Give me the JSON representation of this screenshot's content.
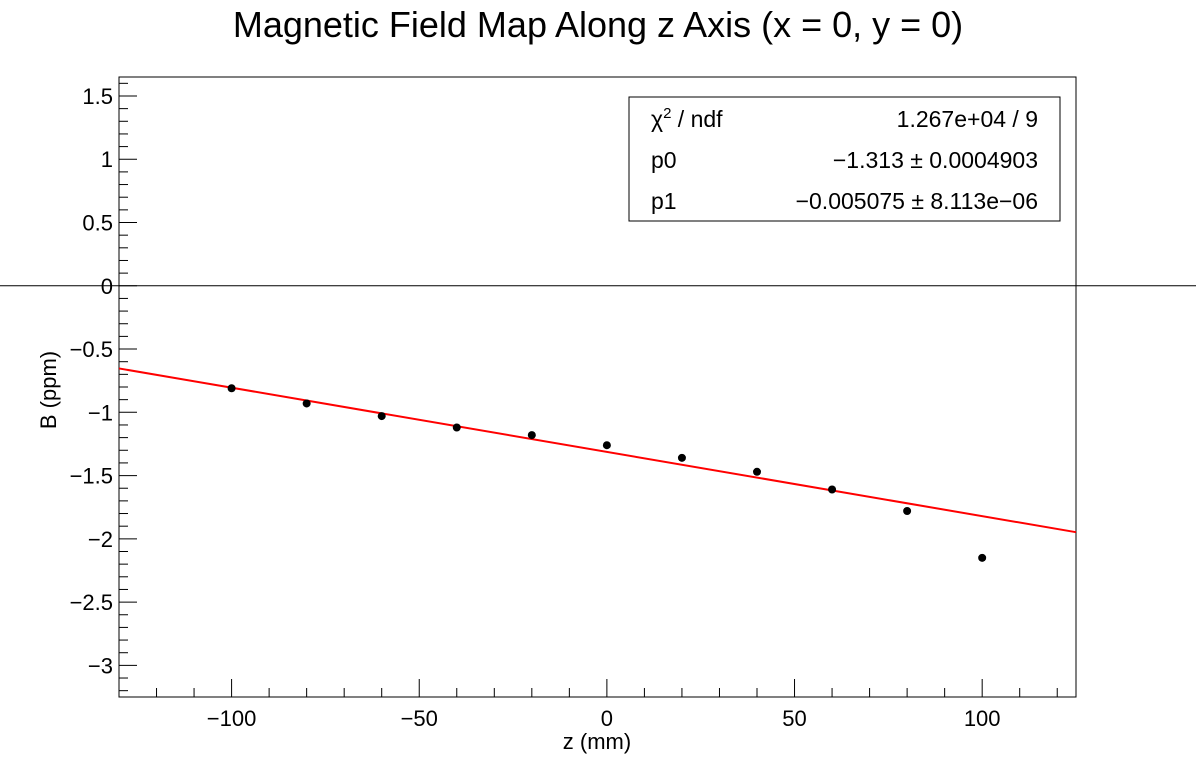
{
  "chart_data": {
    "type": "scatter",
    "title": "Magnetic Field Map Along z Axis (x = 0, y = 0)",
    "xlabel": "z (mm)",
    "ylabel": "B (ppm)",
    "xlim": [
      -130,
      125
    ],
    "ylim": [
      -3.25,
      1.65
    ],
    "xticks": [
      -100,
      -50,
      0,
      50,
      100
    ],
    "xtick_labels": [
      "−100",
      "−50",
      "0",
      "50",
      "100"
    ],
    "yticks": [
      1.5,
      1,
      0.5,
      0,
      -0.5,
      -1,
      -1.5,
      -2,
      -2.5,
      -3
    ],
    "ytick_labels": [
      "1.5",
      "1",
      "0.5",
      "0",
      "−0.5",
      "−1",
      "−1.5",
      "−2",
      "−2.5",
      "−3"
    ],
    "points": {
      "x": [
        -100,
        -80,
        -60,
        -40,
        -20,
        0,
        20,
        40,
        60,
        80,
        100
      ],
      "y": [
        -0.81,
        -0.93,
        -1.03,
        -1.12,
        -1.18,
        -1.26,
        -1.36,
        -1.47,
        -1.61,
        -1.78,
        -2.15
      ]
    },
    "fit": {
      "function": "pol1",
      "p0": -1.313,
      "p1": -0.005075,
      "x_range": [
        -130,
        125
      ],
      "color": "#ff0000"
    },
    "stats_box": {
      "rows": [
        {
          "label": "χ",
          "label_sup": "2",
          "label_rest": " / ndf",
          "value": "1.267e+04 / 9"
        },
        {
          "label": "p0",
          "value": "−1.313 ± 0.0004903"
        },
        {
          "label": "p1",
          "value": "−0.005075 ± 8.113e−06"
        }
      ]
    },
    "zero_line": {
      "y": 0,
      "extends_full_width": true
    },
    "grid": false,
    "legend": "top-right"
  }
}
